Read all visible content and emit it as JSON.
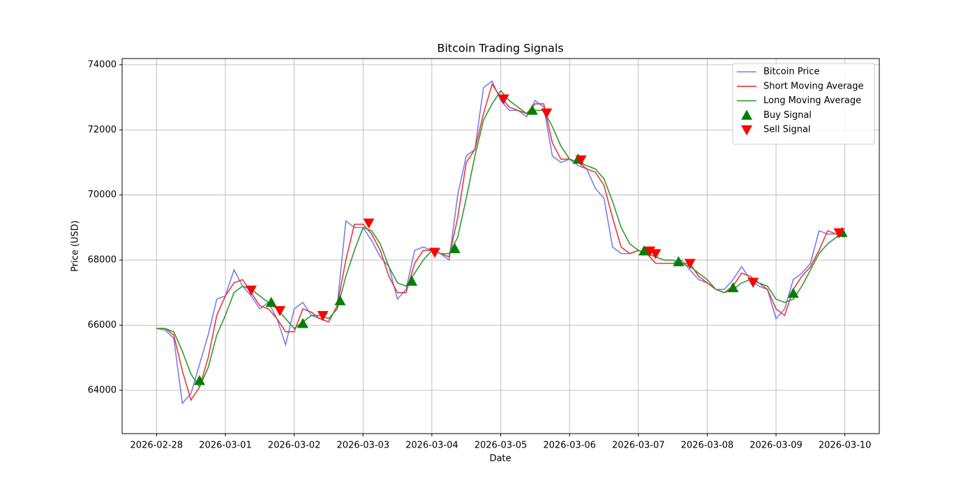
{
  "chart_data": {
    "type": "line",
    "title": "Bitcoin Trading Signals",
    "xlabel": "Date",
    "ylabel": "Price (USD)",
    "x": [
      "2026-02-28T00:00",
      "2026-02-28T03:00",
      "2026-02-28T06:00",
      "2026-02-28T09:00",
      "2026-02-28T12:00",
      "2026-02-28T15:00",
      "2026-02-28T18:00",
      "2026-02-28T21:00",
      "2026-03-01T00:00",
      "2026-03-01T03:00",
      "2026-03-01T06:00",
      "2026-03-01T09:00",
      "2026-03-01T12:00",
      "2026-03-01T15:00",
      "2026-03-01T18:00",
      "2026-03-01T21:00",
      "2026-03-02T00:00",
      "2026-03-02T03:00",
      "2026-03-02T06:00",
      "2026-03-02T09:00",
      "2026-03-02T12:00",
      "2026-03-02T15:00",
      "2026-03-02T18:00",
      "2026-03-02T21:00",
      "2026-03-03T00:00",
      "2026-03-03T03:00",
      "2026-03-03T06:00",
      "2026-03-03T09:00",
      "2026-03-03T12:00",
      "2026-03-03T15:00",
      "2026-03-03T18:00",
      "2026-03-03T21:00",
      "2026-03-04T00:00",
      "2026-03-04T03:00",
      "2026-03-04T06:00",
      "2026-03-04T09:00",
      "2026-03-04T12:00",
      "2026-03-04T15:00",
      "2026-03-04T18:00",
      "2026-03-04T21:00",
      "2026-03-05T00:00",
      "2026-03-05T03:00",
      "2026-03-05T06:00",
      "2026-03-05T09:00",
      "2026-03-05T12:00",
      "2026-03-05T15:00",
      "2026-03-05T18:00",
      "2026-03-05T21:00",
      "2026-03-06T00:00",
      "2026-03-06T03:00",
      "2026-03-06T06:00",
      "2026-03-06T09:00",
      "2026-03-06T12:00",
      "2026-03-06T15:00",
      "2026-03-06T18:00",
      "2026-03-06T21:00",
      "2026-03-07T00:00",
      "2026-03-07T03:00",
      "2026-03-07T06:00",
      "2026-03-07T09:00",
      "2026-03-07T12:00",
      "2026-03-07T15:00",
      "2026-03-07T18:00",
      "2026-03-07T21:00",
      "2026-03-08T00:00",
      "2026-03-08T03:00",
      "2026-03-08T06:00",
      "2026-03-08T09:00",
      "2026-03-08T12:00",
      "2026-03-08T15:00",
      "2026-03-08T18:00",
      "2026-03-08T21:00",
      "2026-03-09T00:00",
      "2026-03-09T03:00",
      "2026-03-09T06:00",
      "2026-03-09T09:00",
      "2026-03-09T12:00",
      "2026-03-09T15:00",
      "2026-03-09T18:00",
      "2026-03-09T21:00",
      "2026-03-10T00:00"
    ],
    "series": [
      {
        "name": "Bitcoin Price",
        "color": "#7b7bf0",
        "values": [
          65900,
          65850,
          65600,
          63600,
          63900,
          64800,
          65700,
          66800,
          66900,
          67700,
          67200,
          66900,
          66500,
          66700,
          66200,
          65400,
          66500,
          66700,
          66300,
          66200,
          66100,
          66600,
          69200,
          69000,
          69000,
          68600,
          68100,
          67800,
          66800,
          67100,
          68300,
          68400,
          68300,
          68200,
          68000,
          70000,
          71200,
          71400,
          73300,
          73500,
          72900,
          72600,
          72600,
          72400,
          72900,
          72700,
          71200,
          71000,
          71100,
          70900,
          70800,
          70200,
          69900,
          68400,
          68200,
          68200,
          68300,
          68200,
          67900,
          67900,
          67900,
          68000,
          67700,
          67400,
          67300,
          67100,
          67100,
          67400,
          67800,
          67400,
          67200,
          67100,
          66200,
          66500,
          67400,
          67600,
          67900,
          68900,
          68800,
          68800,
          68700
        ]
      },
      {
        "name": "Short Moving Average",
        "color": "#e8383a",
        "values": [
          65900,
          65900,
          65700,
          64600,
          63700,
          64100,
          65000,
          66300,
          66900,
          67300,
          67400,
          67000,
          66600,
          66500,
          66200,
          65800,
          65800,
          66500,
          66400,
          66200,
          66100,
          66600,
          68000,
          69100,
          69100,
          68800,
          68300,
          67500,
          67000,
          67000,
          67900,
          68300,
          68300,
          68200,
          68100,
          69300,
          71000,
          71400,
          72500,
          73400,
          73000,
          72700,
          72600,
          72500,
          72800,
          72800,
          71600,
          71100,
          71100,
          71000,
          70800,
          70700,
          70300,
          69300,
          68400,
          68200,
          68300,
          68200,
          67900,
          67900,
          67900,
          67900,
          67900,
          67500,
          67300,
          67100,
          67000,
          67200,
          67600,
          67500,
          67300,
          67100,
          66500,
          66300,
          67100,
          67500,
          67800,
          68300,
          68900,
          68800,
          68800
        ]
      },
      {
        "name": "Long Moving Average",
        "color": "#2e9a2e",
        "values": [
          65900,
          65900,
          65800,
          65200,
          64500,
          64100,
          64700,
          65700,
          66300,
          67000,
          67200,
          67100,
          66900,
          66700,
          66500,
          66200,
          65900,
          66100,
          66300,
          66300,
          66200,
          66500,
          67500,
          68300,
          69000,
          68900,
          68500,
          67800,
          67300,
          67200,
          67600,
          68000,
          68300,
          68200,
          68200,
          68700,
          69900,
          71200,
          72300,
          72800,
          73200,
          72900,
          72700,
          72500,
          72600,
          72600,
          72100,
          71500,
          71100,
          71000,
          70900,
          70800,
          70500,
          69800,
          69000,
          68500,
          68300,
          68200,
          68100,
          68000,
          68000,
          67900,
          67800,
          67600,
          67400,
          67100,
          67000,
          67100,
          67300,
          67400,
          67300,
          67200,
          66800,
          66700,
          66800,
          67200,
          67700,
          68200,
          68500,
          68700,
          68800
        ]
      }
    ],
    "signals": [
      {
        "name": "Buy Signal",
        "color": "#008000",
        "marker": "up",
        "x": [
          "2026-02-28T15:00",
          "2026-03-01T16:00",
          "2026-03-02T03:00",
          "2026-03-02T16:00",
          "2026-03-03T17:00",
          "2026-03-04T08:00",
          "2026-03-05T11:00",
          "2026-03-06T03:00",
          "2026-03-07T02:00",
          "2026-03-07T14:00",
          "2026-03-08T09:00",
          "2026-03-09T06:00",
          "2026-03-09T23:00"
        ],
        "values": [
          64300,
          66700,
          66050,
          66750,
          67350,
          68350,
          72600,
          71100,
          68280,
          67950,
          67150,
          66980,
          68850
        ]
      },
      {
        "name": "Sell Signal",
        "color": "#ff0000",
        "marker": "down",
        "x": [
          "2026-03-01T09:00",
          "2026-03-01T19:00",
          "2026-03-02T10:00",
          "2026-03-03T02:00",
          "2026-03-04T01:00",
          "2026-03-05T01:00",
          "2026-03-05T16:00",
          "2026-03-06T04:00",
          "2026-03-07T04:00",
          "2026-03-07T06:00",
          "2026-03-07T18:00",
          "2026-03-08T16:00",
          "2026-03-09T22:00"
        ],
        "values": [
          67080,
          66450,
          66300,
          69140,
          68240,
          72950,
          72520,
          71080,
          68280,
          68200,
          67900,
          67320,
          68840
        ]
      }
    ],
    "xlim": [
      "2026-02-27T12:00",
      "2026-03-10T12:00"
    ],
    "xticks": [
      "2026-02-28",
      "2026-03-01",
      "2026-03-02",
      "2026-03-03",
      "2026-03-04",
      "2026-03-05",
      "2026-03-06",
      "2026-03-07",
      "2026-03-08",
      "2026-03-09",
      "2026-03-10"
    ],
    "ylim": [
      62670,
      74190
    ],
    "yticks": [
      64000,
      66000,
      68000,
      70000,
      72000,
      74000
    ],
    "grid": true,
    "legend": "upper right"
  }
}
